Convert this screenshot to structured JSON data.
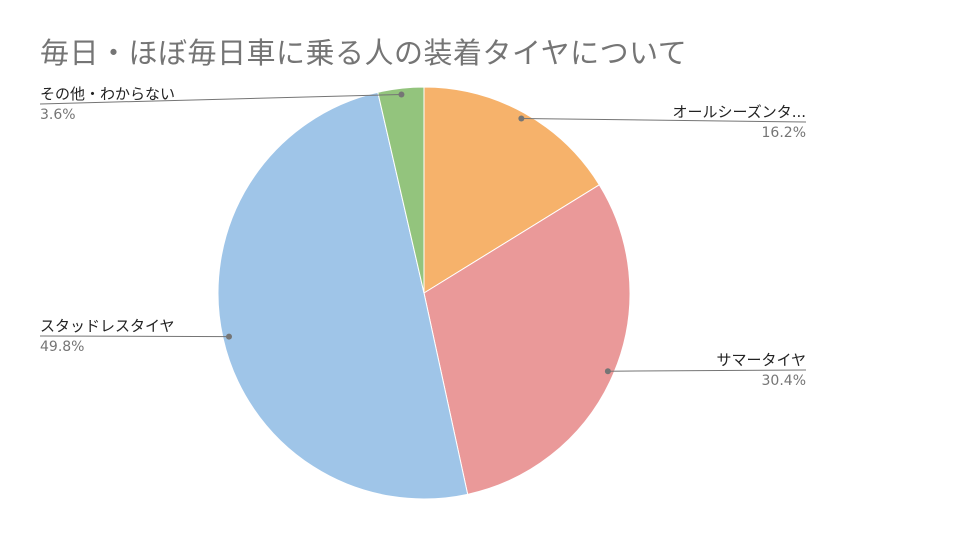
{
  "chart_data": {
    "type": "pie",
    "title": "毎日・ほぼ毎日車に乗る人の装着タイヤについて",
    "slices": [
      {
        "label": "オールシーズンタ...",
        "value": 16.2,
        "display": "16.2%",
        "color": "#f6b26b"
      },
      {
        "label": "サマータイヤ",
        "value": 30.4,
        "display": "30.4%",
        "color": "#ea9999"
      },
      {
        "label": "スタッドレスタイヤ",
        "value": 49.8,
        "display": "49.8%",
        "color": "#9fc5e8"
      },
      {
        "label": "その他・わからない",
        "value": 3.6,
        "display": "3.6%",
        "color": "#93c47d"
      }
    ],
    "start_angle_deg": 0,
    "direction": "clockwise",
    "legend": "none",
    "labels": "outside-with-leader-lines"
  }
}
